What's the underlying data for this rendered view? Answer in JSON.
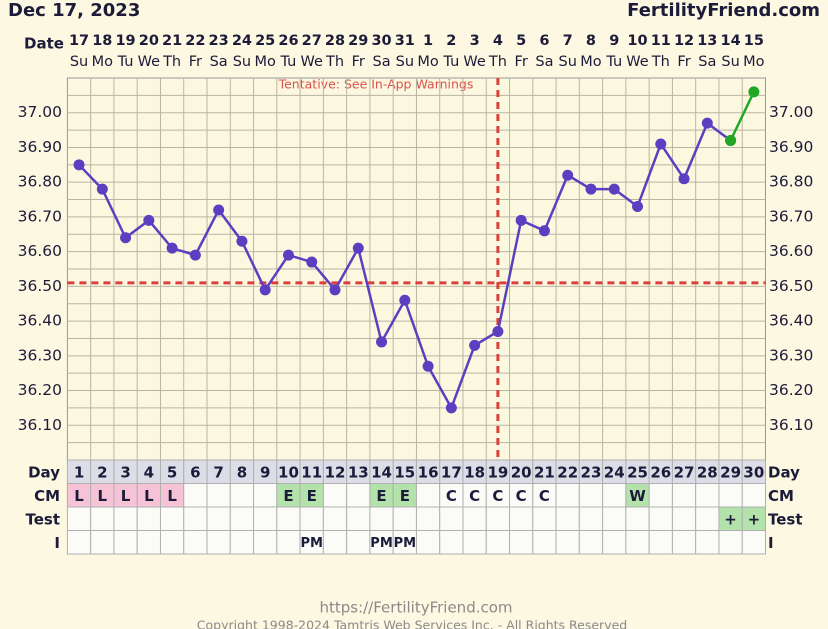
{
  "header": {
    "date": "Dec 17, 2023",
    "site": "FertilityFriend.com"
  },
  "chart_data": {
    "type": "line",
    "date_label": "Date",
    "dates": [
      17,
      18,
      19,
      20,
      21,
      22,
      23,
      24,
      25,
      26,
      27,
      28,
      29,
      30,
      31,
      1,
      2,
      3,
      4,
      5,
      6,
      7,
      8,
      9,
      10,
      11,
      12,
      13,
      14,
      15
    ],
    "weekdays": [
      "Su",
      "Mo",
      "Tu",
      "We",
      "Th",
      "Fr",
      "Sa",
      "Su",
      "Mo",
      "Tu",
      "We",
      "Th",
      "Fr",
      "Sa",
      "Su",
      "Mo",
      "Tu",
      "We",
      "Th",
      "Fr",
      "Sa",
      "Su",
      "Mo",
      "Tu",
      "We",
      "Th",
      "Fr",
      "Sa",
      "Su",
      "Mo"
    ],
    "annotation": "Tentative: See In-App Warnings",
    "series": [
      {
        "color": "#5a3fc0",
        "values": [
          36.85,
          36.78,
          36.64,
          36.69,
          36.61,
          36.59,
          36.72,
          36.63,
          36.49,
          36.59,
          36.57,
          36.49,
          36.61,
          36.34,
          36.46,
          36.27,
          36.15,
          36.33,
          36.37,
          36.69,
          36.66,
          36.82,
          36.78,
          36.78,
          36.73,
          36.91,
          36.81,
          36.97,
          36.92,
          null
        ]
      },
      {
        "color": "#22a625",
        "values": [
          null,
          null,
          null,
          null,
          null,
          null,
          null,
          null,
          null,
          null,
          null,
          null,
          null,
          null,
          null,
          null,
          null,
          null,
          null,
          null,
          null,
          null,
          null,
          null,
          null,
          null,
          null,
          null,
          36.92,
          37.06
        ]
      }
    ],
    "ylim": [
      36.0,
      37.1
    ],
    "yticks": [
      {
        "value": 36.1,
        "label": "36.10"
      },
      {
        "value": 36.2,
        "label": "36.20"
      },
      {
        "value": 36.3,
        "label": "36.30"
      },
      {
        "value": 36.4,
        "label": "36.40"
      },
      {
        "value": 36.5,
        "label": "36.50"
      },
      {
        "value": 36.6,
        "label": "36.60"
      },
      {
        "value": 36.7,
        "label": "36.70"
      },
      {
        "value": 36.8,
        "label": "36.80"
      },
      {
        "value": 36.9,
        "label": "36.90"
      },
      {
        "value": 37.0,
        "label": "37.00"
      }
    ],
    "minor_grid": [
      36.05,
      36.15,
      36.25,
      36.35,
      36.45,
      36.55,
      36.65,
      36.75,
      36.85,
      36.95,
      37.05
    ],
    "grid": true,
    "coverline": 36.51,
    "coverline_color": "#d9413c",
    "ovulation_day": 19
  },
  "table": {
    "cell_colors": {
      "L": "#f6c3d6",
      "E": "#b3e3aa",
      "W": "#b3e3aa",
      "+": "#b3e3aa"
    },
    "rows": [
      {
        "label": "Day",
        "cells": [
          1,
          2,
          3,
          4,
          5,
          6,
          7,
          8,
          9,
          10,
          11,
          12,
          13,
          14,
          15,
          16,
          17,
          18,
          19,
          20,
          21,
          22,
          23,
          24,
          25,
          26,
          27,
          28,
          29,
          30
        ]
      },
      {
        "label": "CM",
        "cells": [
          "L",
          "L",
          "L",
          "L",
          "L",
          null,
          null,
          null,
          null,
          "E",
          "E",
          null,
          null,
          "E",
          "E",
          null,
          "C",
          "C",
          "C",
          "C",
          "C",
          null,
          null,
          null,
          "W",
          null,
          null,
          null,
          null,
          null
        ]
      },
      {
        "label": "Test",
        "cells": [
          null,
          null,
          null,
          null,
          null,
          null,
          null,
          null,
          null,
          null,
          null,
          null,
          null,
          null,
          null,
          null,
          null,
          null,
          null,
          null,
          null,
          null,
          null,
          null,
          null,
          null,
          null,
          null,
          "+",
          "+"
        ]
      },
      {
        "label": "I",
        "cells": [
          null,
          null,
          null,
          null,
          null,
          null,
          null,
          null,
          null,
          null,
          "PM",
          null,
          null,
          "PM",
          "PM",
          null,
          null,
          null,
          null,
          null,
          null,
          null,
          null,
          null,
          null,
          null,
          null,
          null,
          null,
          null
        ]
      }
    ]
  },
  "footer": {
    "url": "https://FertilityFriend.com",
    "copyright": "Copyright 1998-2024 Tamtris Web Services Inc. - All Rights Reserved"
  }
}
